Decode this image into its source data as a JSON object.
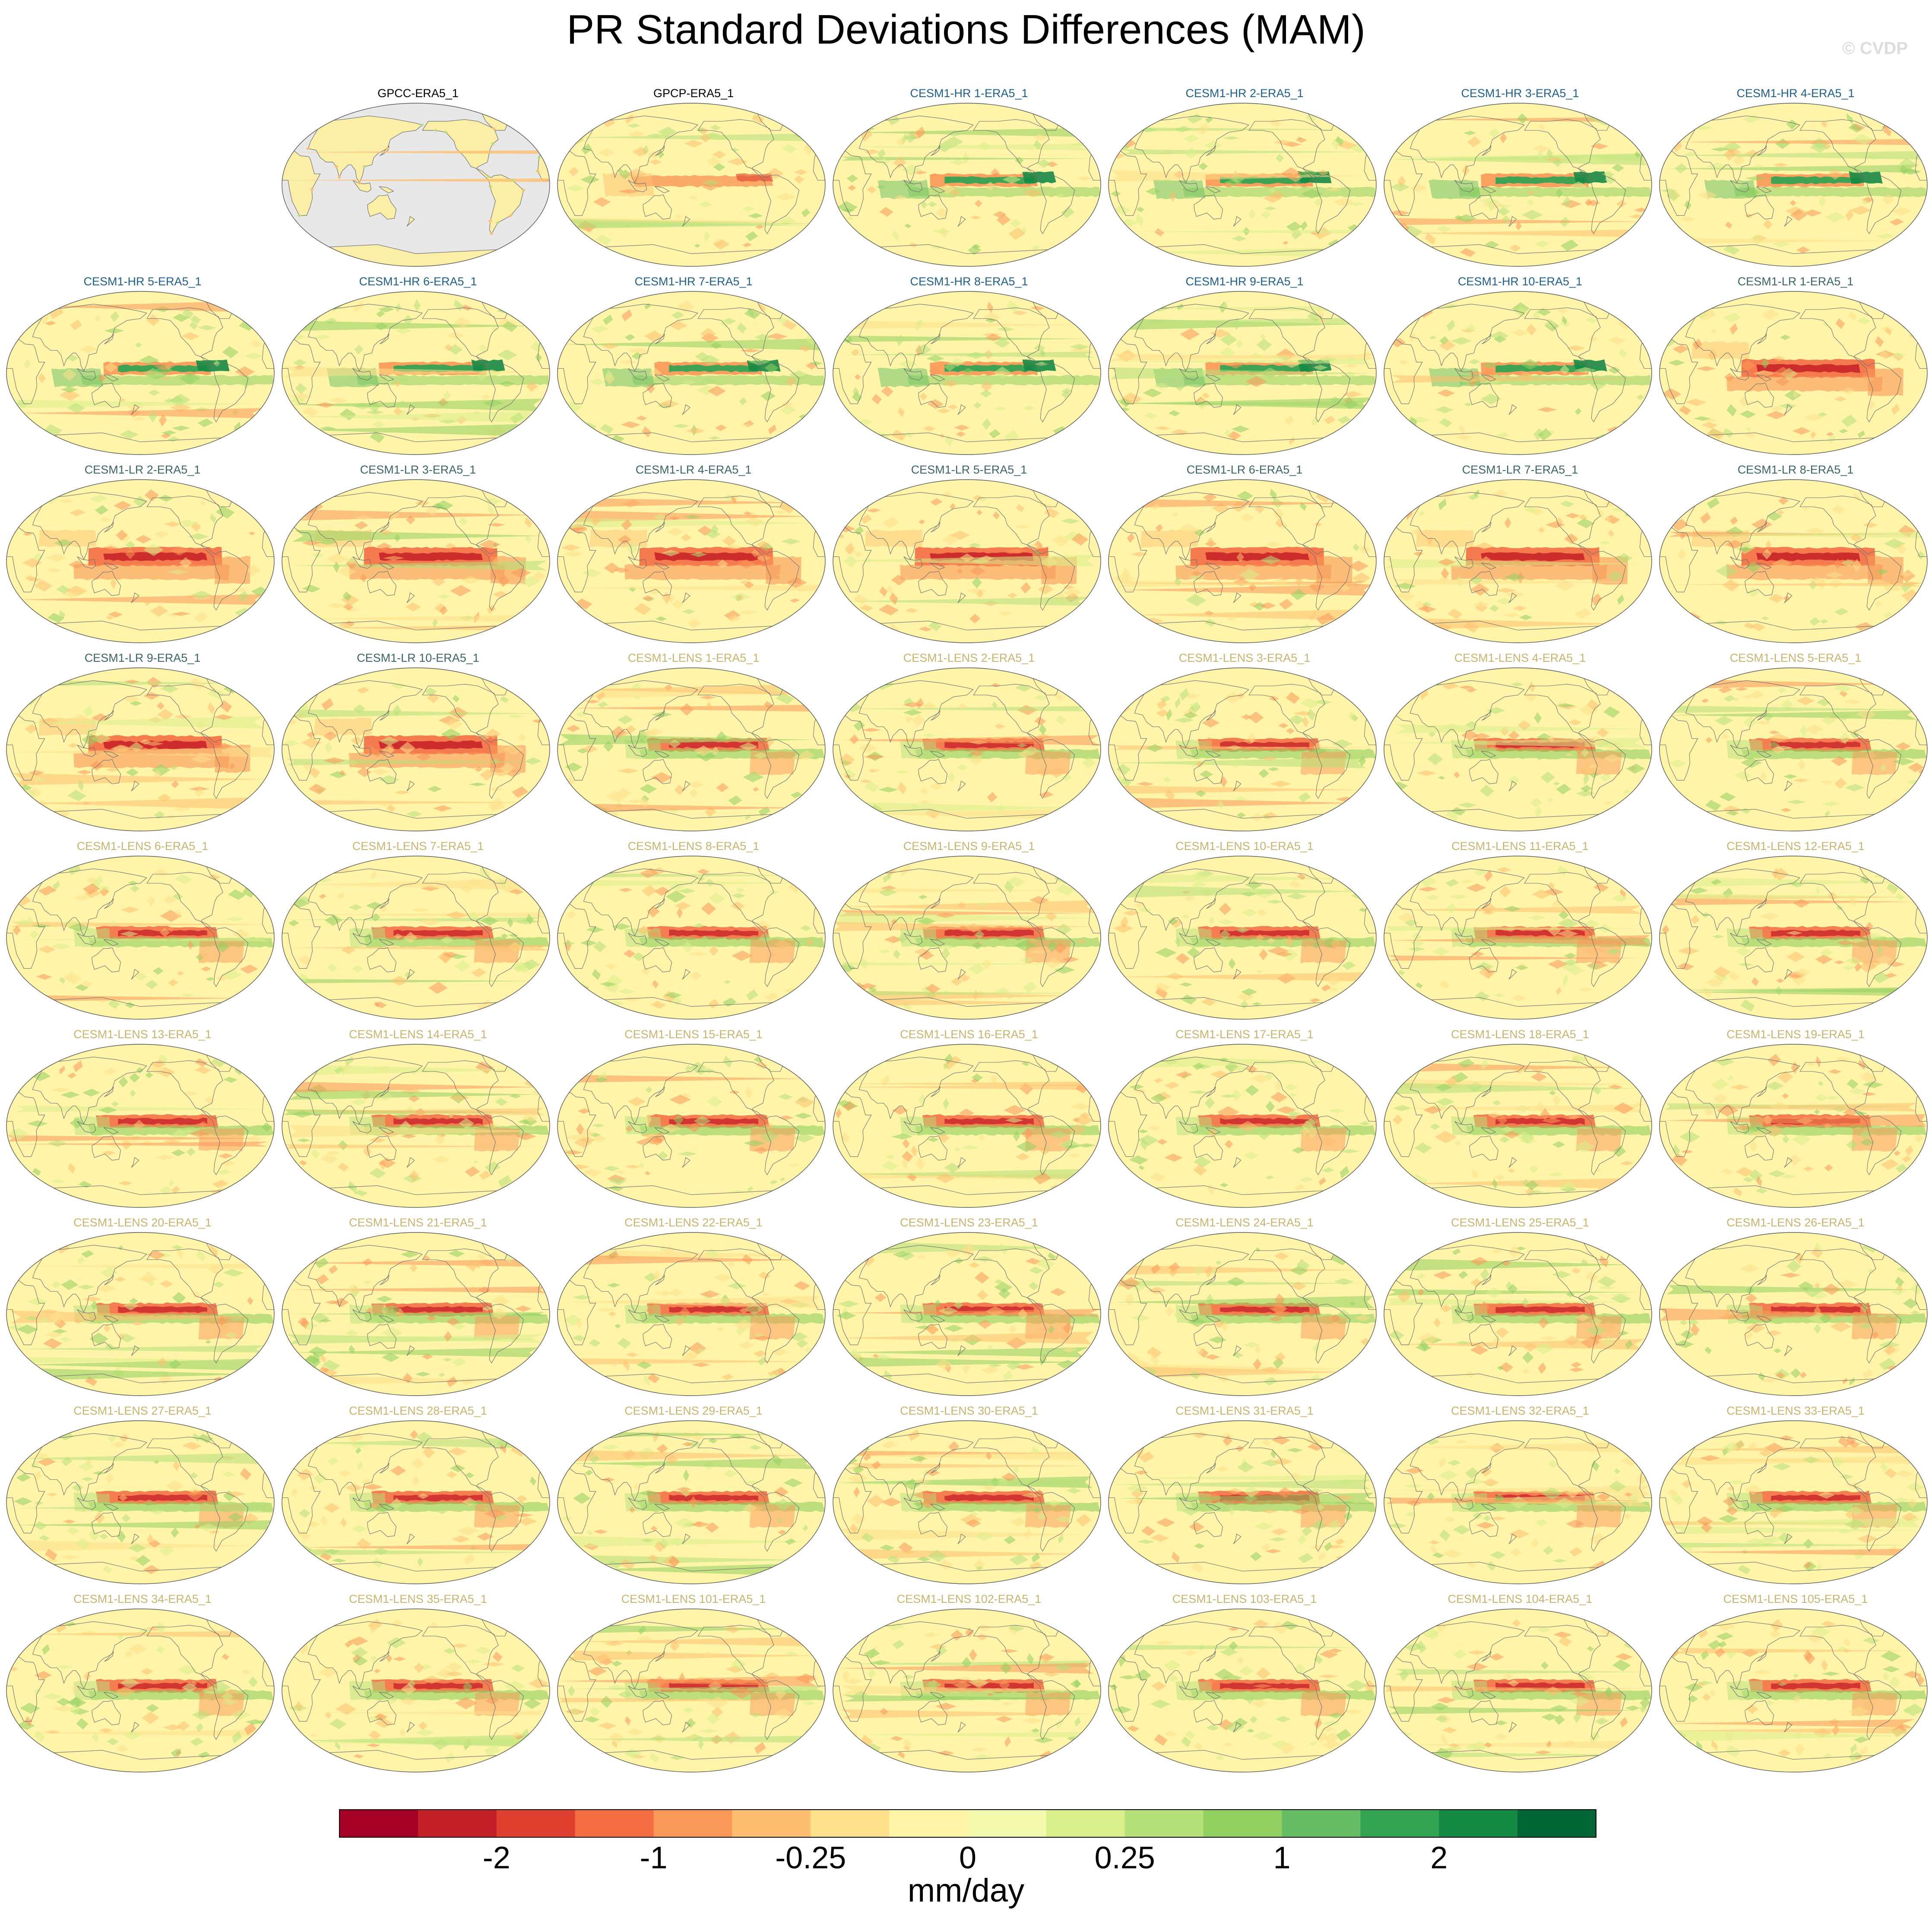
{
  "title": "PR Standard Deviations Differences (MAM)",
  "watermark": "© CVDP",
  "colors": {
    "title_obs": "#000000",
    "title_hr": "#1f5f8b",
    "title_lr": "#3c6464",
    "title_lens": "#c8b46e",
    "land_obs": "#fbeea6",
    "ocean_obs": "#e8e8e8",
    "coast": "#707070"
  },
  "chart_data": {
    "type": "heatmap",
    "projection": "robinson-like global maps",
    "panels": [
      {
        "label": "GPCC-ERA5_1",
        "group": "obs_land"
      },
      {
        "label": "GPCP-ERA5_1",
        "group": "obs"
      },
      {
        "label": "CESM1-HR 1-ERA5_1",
        "group": "hr"
      },
      {
        "label": "CESM1-HR 2-ERA5_1",
        "group": "hr"
      },
      {
        "label": "CESM1-HR 3-ERA5_1",
        "group": "hr"
      },
      {
        "label": "CESM1-HR 4-ERA5_1",
        "group": "hr"
      },
      {
        "label": "CESM1-HR 5-ERA5_1",
        "group": "hr"
      },
      {
        "label": "CESM1-HR 6-ERA5_1",
        "group": "hr"
      },
      {
        "label": "CESM1-HR 7-ERA5_1",
        "group": "hr"
      },
      {
        "label": "CESM1-HR 8-ERA5_1",
        "group": "hr"
      },
      {
        "label": "CESM1-HR 9-ERA5_1",
        "group": "hr"
      },
      {
        "label": "CESM1-HR 10-ERA5_1",
        "group": "hr"
      },
      {
        "label": "CESM1-LR 1-ERA5_1",
        "group": "lr"
      },
      {
        "label": "CESM1-LR 2-ERA5_1",
        "group": "lr"
      },
      {
        "label": "CESM1-LR 3-ERA5_1",
        "group": "lr"
      },
      {
        "label": "CESM1-LR 4-ERA5_1",
        "group": "lr"
      },
      {
        "label": "CESM1-LR 5-ERA5_1",
        "group": "lr"
      },
      {
        "label": "CESM1-LR 6-ERA5_1",
        "group": "lr"
      },
      {
        "label": "CESM1-LR 7-ERA5_1",
        "group": "lr"
      },
      {
        "label": "CESM1-LR 8-ERA5_1",
        "group": "lr"
      },
      {
        "label": "CESM1-LR 9-ERA5_1",
        "group": "lr"
      },
      {
        "label": "CESM1-LR 10-ERA5_1",
        "group": "lr"
      },
      {
        "label": "CESM1-LENS 1-ERA5_1",
        "group": "lens"
      },
      {
        "label": "CESM1-LENS 2-ERA5_1",
        "group": "lens"
      },
      {
        "label": "CESM1-LENS 3-ERA5_1",
        "group": "lens"
      },
      {
        "label": "CESM1-LENS 4-ERA5_1",
        "group": "lens"
      },
      {
        "label": "CESM1-LENS 5-ERA5_1",
        "group": "lens"
      },
      {
        "label": "CESM1-LENS 6-ERA5_1",
        "group": "lens"
      },
      {
        "label": "CESM1-LENS 7-ERA5_1",
        "group": "lens"
      },
      {
        "label": "CESM1-LENS 8-ERA5_1",
        "group": "lens"
      },
      {
        "label": "CESM1-LENS 9-ERA5_1",
        "group": "lens"
      },
      {
        "label": "CESM1-LENS 10-ERA5_1",
        "group": "lens"
      },
      {
        "label": "CESM1-LENS 11-ERA5_1",
        "group": "lens"
      },
      {
        "label": "CESM1-LENS 12-ERA5_1",
        "group": "lens"
      },
      {
        "label": "CESM1-LENS 13-ERA5_1",
        "group": "lens"
      },
      {
        "label": "CESM1-LENS 14-ERA5_1",
        "group": "lens"
      },
      {
        "label": "CESM1-LENS 15-ERA5_1",
        "group": "lens"
      },
      {
        "label": "CESM1-LENS 16-ERA5_1",
        "group": "lens"
      },
      {
        "label": "CESM1-LENS 17-ERA5_1",
        "group": "lens"
      },
      {
        "label": "CESM1-LENS 18-ERA5_1",
        "group": "lens"
      },
      {
        "label": "CESM1-LENS 19-ERA5_1",
        "group": "lens"
      },
      {
        "label": "CESM1-LENS 20-ERA5_1",
        "group": "lens"
      },
      {
        "label": "CESM1-LENS 21-ERA5_1",
        "group": "lens"
      },
      {
        "label": "CESM1-LENS 22-ERA5_1",
        "group": "lens"
      },
      {
        "label": "CESM1-LENS 23-ERA5_1",
        "group": "lens"
      },
      {
        "label": "CESM1-LENS 24-ERA5_1",
        "group": "lens"
      },
      {
        "label": "CESM1-LENS 25-ERA5_1",
        "group": "lens"
      },
      {
        "label": "CESM1-LENS 26-ERA5_1",
        "group": "lens"
      },
      {
        "label": "CESM1-LENS 27-ERA5_1",
        "group": "lens"
      },
      {
        "label": "CESM1-LENS 28-ERA5_1",
        "group": "lens"
      },
      {
        "label": "CESM1-LENS 29-ERA5_1",
        "group": "lens"
      },
      {
        "label": "CESM1-LENS 30-ERA5_1",
        "group": "lens"
      },
      {
        "label": "CESM1-LENS 31-ERA5_1",
        "group": "lens"
      },
      {
        "label": "CESM1-LENS 32-ERA5_1",
        "group": "lens"
      },
      {
        "label": "CESM1-LENS 33-ERA5_1",
        "group": "lens"
      },
      {
        "label": "CESM1-LENS 34-ERA5_1",
        "group": "lens"
      },
      {
        "label": "CESM1-LENS 35-ERA5_1",
        "group": "lens"
      },
      {
        "label": "CESM1-LENS 101-ERA5_1",
        "group": "lens"
      },
      {
        "label": "CESM1-LENS 102-ERA5_1",
        "group": "lens"
      },
      {
        "label": "CESM1-LENS 103-ERA5_1",
        "group": "lens"
      },
      {
        "label": "CESM1-LENS 104-ERA5_1",
        "group": "lens"
      },
      {
        "label": "CESM1-LENS 105-ERA5_1",
        "group": "lens"
      }
    ],
    "colorbar": {
      "units": "mm/day",
      "colors": [
        "#a50026",
        "#c41e27",
        "#de3f2e",
        "#f46d43",
        "#f99858",
        "#fdbf6f",
        "#fee08b",
        "#fff4a8",
        "#f3f9ac",
        "#d9ef8b",
        "#b5e07a",
        "#91cf60",
        "#66bd63",
        "#34a352",
        "#148a45",
        "#006837"
      ],
      "tick_labels": [
        {
          "boundary": 2,
          "label": "-2"
        },
        {
          "boundary": 4,
          "label": "-1"
        },
        {
          "boundary": 6,
          "label": "-0.25"
        },
        {
          "boundary": 8,
          "label": "0"
        },
        {
          "boundary": 10,
          "label": "0.25"
        },
        {
          "boundary": 12,
          "label": "1"
        },
        {
          "boundary": 14,
          "label": "2"
        }
      ]
    }
  }
}
